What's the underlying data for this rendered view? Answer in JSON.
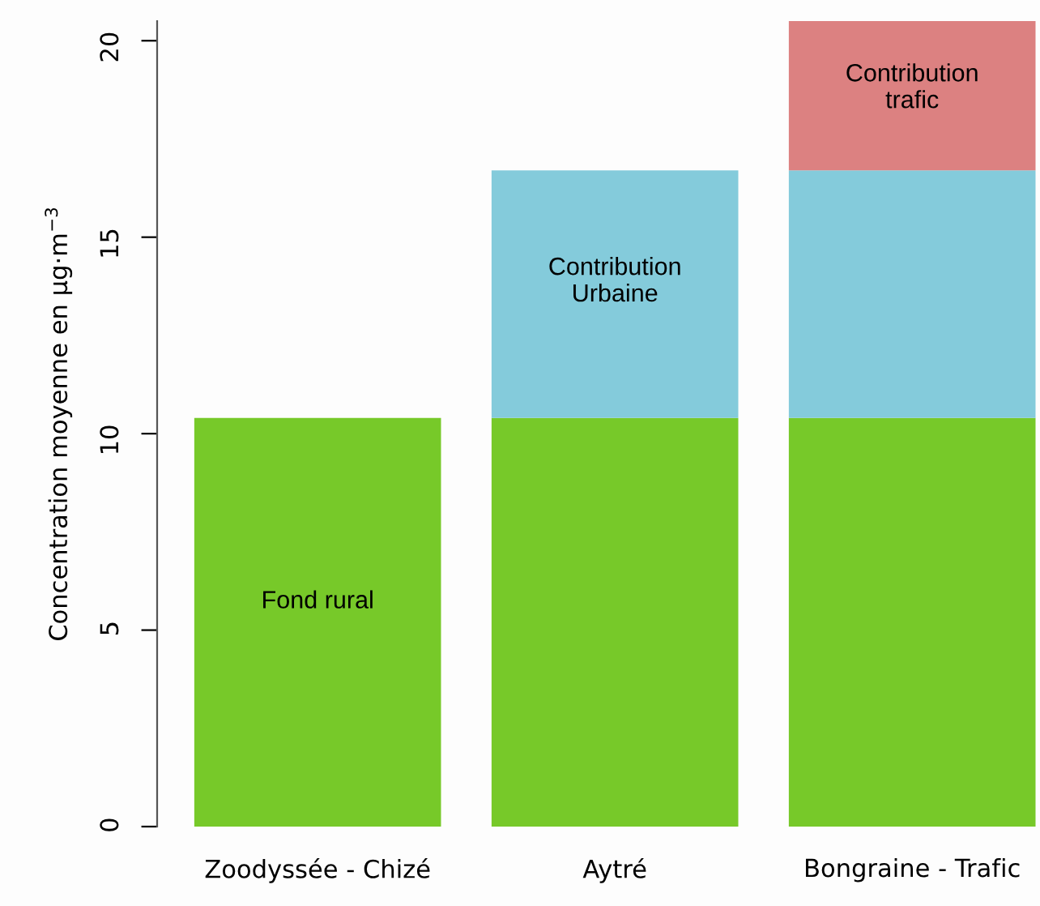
{
  "chart_data": {
    "type": "bar",
    "stacked": true,
    "ylabel": "Concentration moyenne en µg·m$^{−3}$",
    "categories": [
      "Zoodyssée - Chizé",
      "Aytré",
      "Bongraine - Trafic"
    ],
    "series": [
      {
        "name": "Fond rural",
        "color": "#77c929",
        "values": [
          10.4,
          10.4,
          10.4
        ]
      },
      {
        "name": "Contribution\nUrbaine",
        "color": "#84cbdb",
        "values": [
          0,
          6.3,
          6.3
        ]
      },
      {
        "name": "Contribution\ntrafic",
        "color": "#dc8181",
        "values": [
          0,
          0,
          3.8
        ]
      }
    ],
    "ylim": [
      0,
      20.5
    ],
    "yticks": [
      0,
      5,
      10,
      15,
      20
    ],
    "grid": false,
    "legend": false
  }
}
